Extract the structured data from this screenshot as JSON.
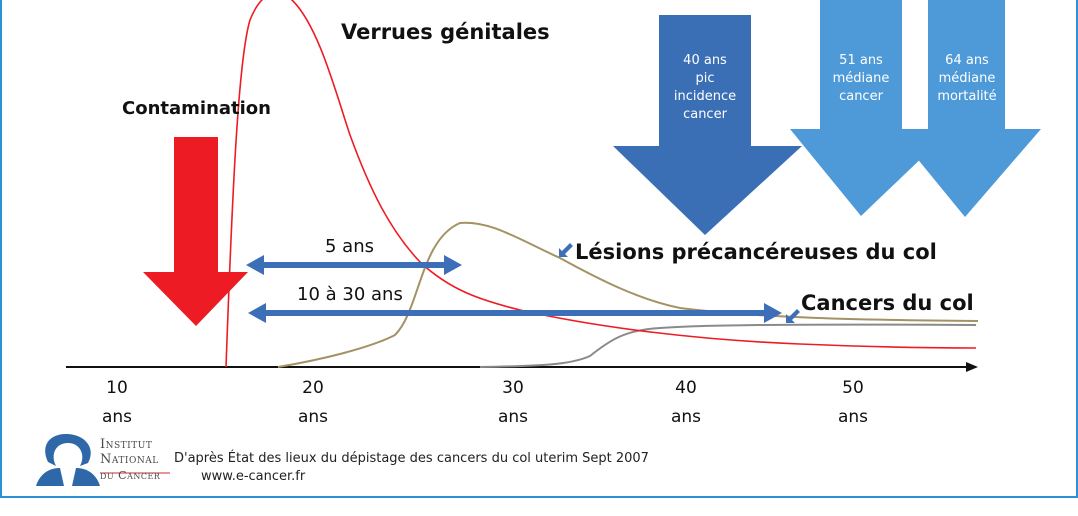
{
  "labels": {
    "verrues": "Verrues génitales",
    "contamination": "Contamination",
    "lesions": "Lésions précancéreuses du col",
    "cancers": "Cancers du col",
    "span_5": "5 ans",
    "span_10_30": "10 à 30 ans"
  },
  "milestones": [
    {
      "line1": "40 ans",
      "line2": "pic",
      "line3": "incidence",
      "line4": "cancer"
    },
    {
      "line1": "51 ans",
      "line2": "médiane",
      "line3": "cancer"
    },
    {
      "line1": "64 ans",
      "line2": "médiane",
      "line3": "mortalité"
    }
  ],
  "axis": {
    "ticks": [
      {
        "value": "10",
        "unit": "ans"
      },
      {
        "value": "20",
        "unit": "ans"
      },
      {
        "value": "30",
        "unit": "ans"
      },
      {
        "value": "40",
        "unit": "ans"
      },
      {
        "value": "50",
        "unit": "ans"
      }
    ]
  },
  "footer": {
    "source": "D'après État des lieux du dépistage des cancers du col uterim Sept 2007",
    "url": "www.e-cancer.fr",
    "logo_line1": "Institut",
    "logo_line2": "National",
    "logo_line3": "du Cancer"
  },
  "colors": {
    "frame": "#2d8fd6",
    "red": "#ed1c24",
    "dark_blue": "#3a6fb6",
    "light_blue": "#4e9ad8",
    "olive": "#a39263",
    "gray": "#8a8a8a",
    "axis": "#111111"
  }
}
